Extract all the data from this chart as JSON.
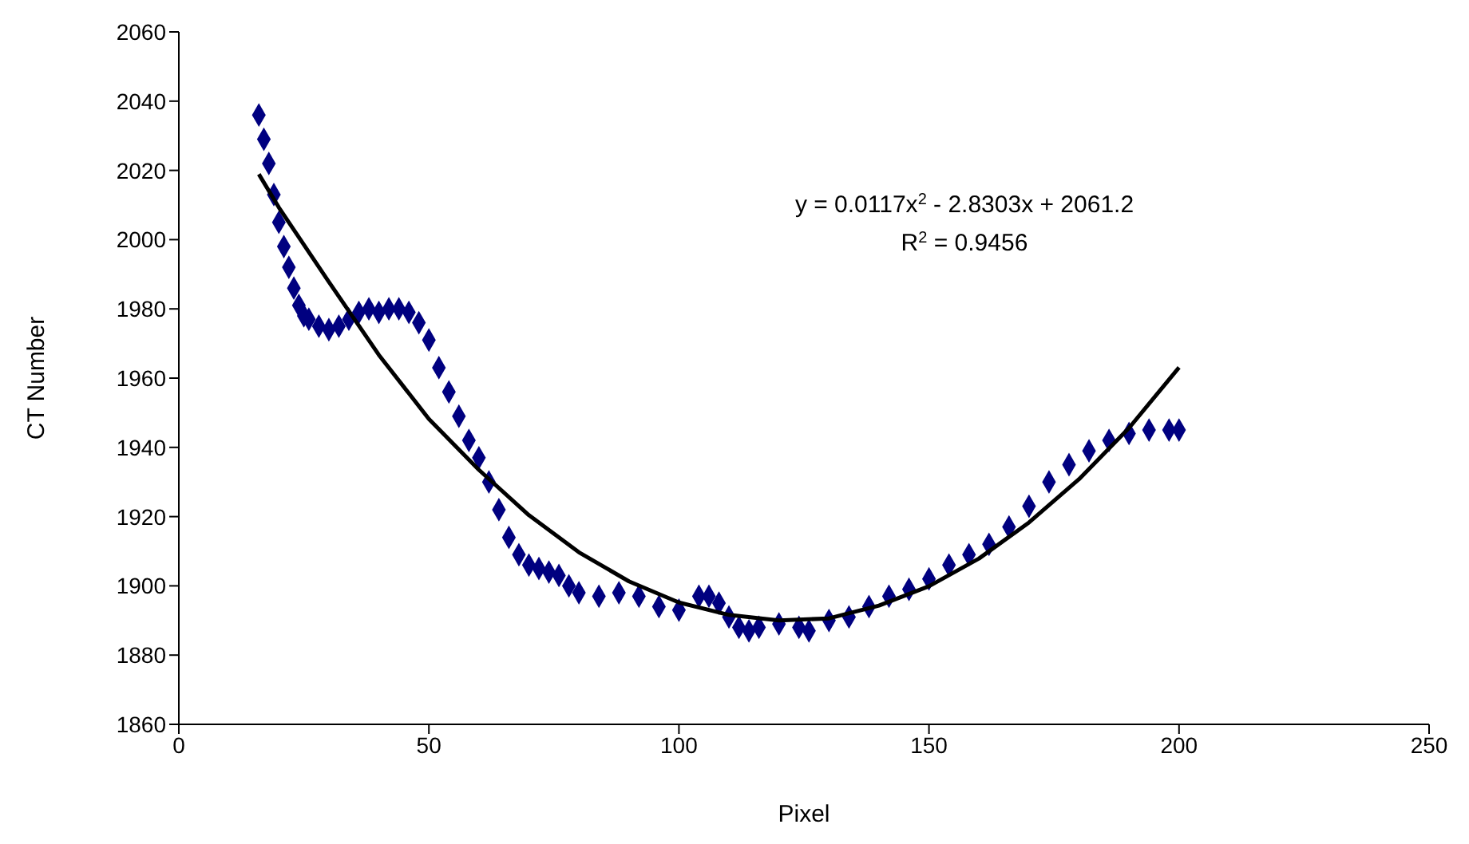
{
  "chart_data": {
    "type": "scatter",
    "xlabel": "Pixel",
    "ylabel": "CT Number",
    "xlim": [
      0,
      250
    ],
    "xticks": [
      0,
      50,
      100,
      150,
      200,
      250
    ],
    "ylim": [
      1860,
      2060
    ],
    "yticks": [
      1860,
      1880,
      1900,
      1920,
      1940,
      1960,
      1980,
      2000,
      2020,
      2040,
      2060
    ],
    "grid": false,
    "legend": false,
    "marker": "diamond",
    "annotations": [
      "y = 0.0117x$^{2}$ - 2.8303x + 2061.2",
      "R$^{2}$ = 0.9456"
    ],
    "series": [
      {
        "color": "#000080",
        "x": [
          16,
          17,
          18,
          19,
          20,
          21,
          22,
          23,
          24,
          25,
          26,
          28,
          30,
          32,
          34,
          36,
          38,
          40,
          42,
          44,
          46,
          48,
          50,
          52,
          54,
          56,
          58,
          60,
          62,
          64,
          66,
          68,
          70,
          72,
          74,
          76,
          78,
          80,
          84,
          88,
          92,
          96,
          100,
          104,
          106,
          108,
          110,
          112,
          114,
          116,
          120,
          124,
          126,
          130,
          134,
          138,
          142,
          146,
          150,
          154,
          158,
          162,
          166,
          170,
          174,
          178,
          182,
          186,
          190,
          194,
          198,
          200
        ],
        "values": [
          2036,
          2029,
          2022,
          2013,
          2005,
          1998,
          1992,
          1986,
          1981,
          1978,
          1977,
          1975,
          1974,
          1975,
          1977,
          1979,
          1980,
          1979,
          1980,
          1980,
          1979,
          1976,
          1971,
          1963,
          1956,
          1949,
          1942,
          1937,
          1930,
          1922,
          1914,
          1909,
          1906,
          1905,
          1904,
          1903,
          1900,
          1898,
          1897,
          1898,
          1897,
          1894,
          1893,
          1897,
          1897,
          1895,
          1891,
          1888,
          1887,
          1888,
          1889,
          1888,
          1887,
          1890,
          1891,
          1894,
          1897,
          1899,
          1902,
          1906,
          1909,
          1912,
          1917,
          1923,
          1930,
          1935,
          1939,
          1942,
          1944,
          1945,
          1945,
          1945
        ]
      },
      {
        "type": "line",
        "color": "#000000",
        "marker": "none",
        "line_style": "solid",
        "x": [
          16,
          20,
          30,
          40,
          50,
          60,
          70,
          80,
          90,
          100,
          110,
          120,
          130,
          140,
          150,
          160,
          170,
          180,
          190,
          200
        ],
        "values": [
          2018.9,
          2009.3,
          1987.8,
          1966.7,
          1948.2,
          1933.5,
          1920.4,
          1909.7,
          1901.3,
          1895.2,
          1891.6,
          1890.0,
          1890.6,
          1894.3,
          1899.9,
          1907.9,
          1918.3,
          1930.8,
          1945.6,
          1963.1
        ]
      }
    ]
  }
}
